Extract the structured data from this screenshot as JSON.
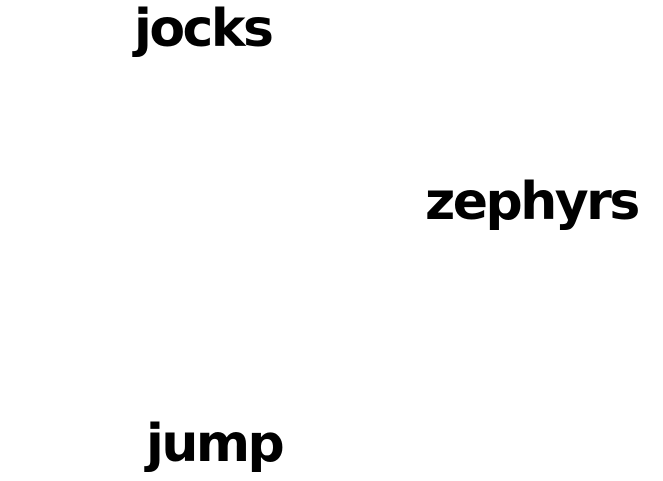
{
  "words": [
    {
      "text": "jocks",
      "color": "#000000"
    },
    {
      "text": "zephyrs",
      "color": "#000000"
    },
    {
      "text": "jump",
      "color": "#000000"
    }
  ]
}
